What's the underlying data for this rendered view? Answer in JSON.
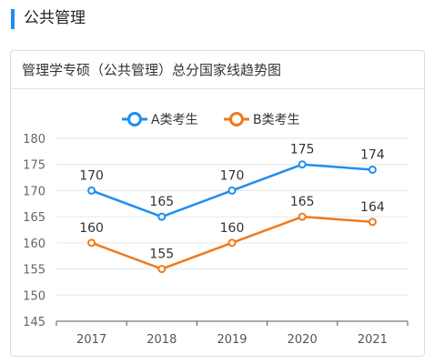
{
  "section": {
    "title": "公共管理",
    "accent_color": "#1f8ff0"
  },
  "card": {
    "title": "管理学专硕（公共管理）总分国家线趋势图"
  },
  "chart_data": {
    "type": "line",
    "title": "管理学专硕（公共管理）总分国家线趋势图",
    "categories": [
      "2017",
      "2018",
      "2019",
      "2020",
      "2021"
    ],
    "series": [
      {
        "name": "A类考生",
        "values": [
          170,
          165,
          170,
          175,
          174
        ],
        "color": "#1f8ff0"
      },
      {
        "name": "B类考生",
        "values": [
          160,
          155,
          160,
          165,
          164
        ],
        "color": "#f07a1c"
      }
    ],
    "ylim": [
      145,
      180
    ],
    "yticks": [
      "145",
      "150",
      "155",
      "160",
      "165",
      "170",
      "175",
      "180"
    ],
    "grid": true,
    "legend": "top-center"
  }
}
